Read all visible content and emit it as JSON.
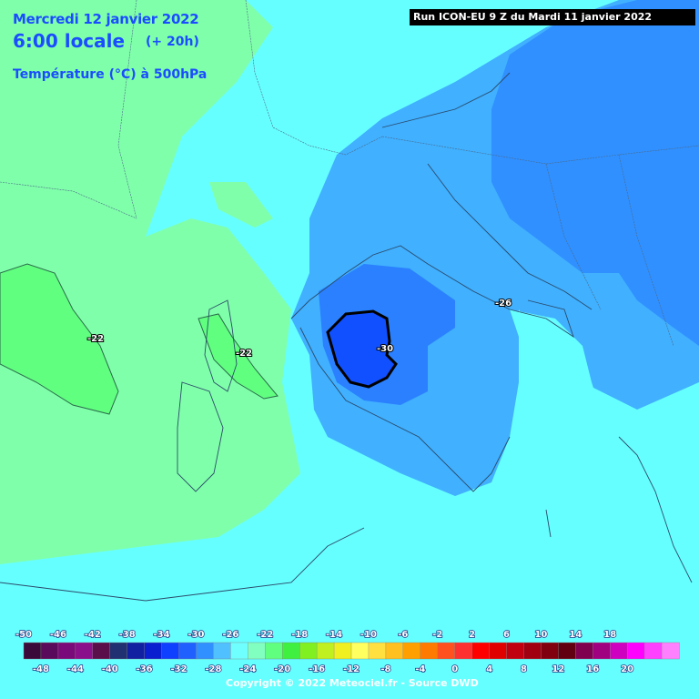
{
  "header": {
    "date": "Mercredi 12 janvier 2022",
    "hour": "6:00 locale",
    "offset": "(+ 20h)",
    "parameter": "Température (°C) à 500hPa",
    "run": "Run ICON-EU 9 Z du Mardi 11 janvier 2022"
  },
  "contour_labels": [
    "-22",
    "-22",
    "-30",
    "-26"
  ],
  "legend": {
    "top_ticks": [
      "-50",
      "-46",
      "-42",
      "-38",
      "-34",
      "-30",
      "-26",
      "-22",
      "-18",
      "-14",
      "-10",
      "-6",
      "-2",
      "2",
      "6",
      "10",
      "14",
      "18"
    ],
    "bottom_ticks": [
      "-48",
      "-44",
      "-40",
      "-36",
      "-32",
      "-28",
      "-24",
      "-20",
      "-16",
      "-12",
      "-8",
      "-4",
      "0",
      "4",
      "8",
      "12",
      "16",
      "20"
    ],
    "colors": [
      "#3a0a3a",
      "#5a0a5a",
      "#7a0a7a",
      "#8a0f8a",
      "#5a0f4a",
      "#203070",
      "#1020a0",
      "#0a20d0",
      "#1040ff",
      "#2060ff",
      "#3090ff",
      "#50c0ff",
      "#70ffff",
      "#80ffc0",
      "#60ff80",
      "#40f040",
      "#80f020",
      "#c0f020",
      "#f0f020",
      "#ffff60",
      "#ffe040",
      "#ffc020",
      "#ffa000",
      "#ff7a00",
      "#ff5020",
      "#ff3030",
      "#ff0000",
      "#e00000",
      "#c00010",
      "#a00010",
      "#800010",
      "#600010",
      "#800050",
      "#a00080",
      "#d000c0",
      "#ff00ff",
      "#ff40ff",
      "#ff80ff"
    ]
  },
  "copyright": "Copyright © 2022 Meteociel.fr - Source DWD"
}
